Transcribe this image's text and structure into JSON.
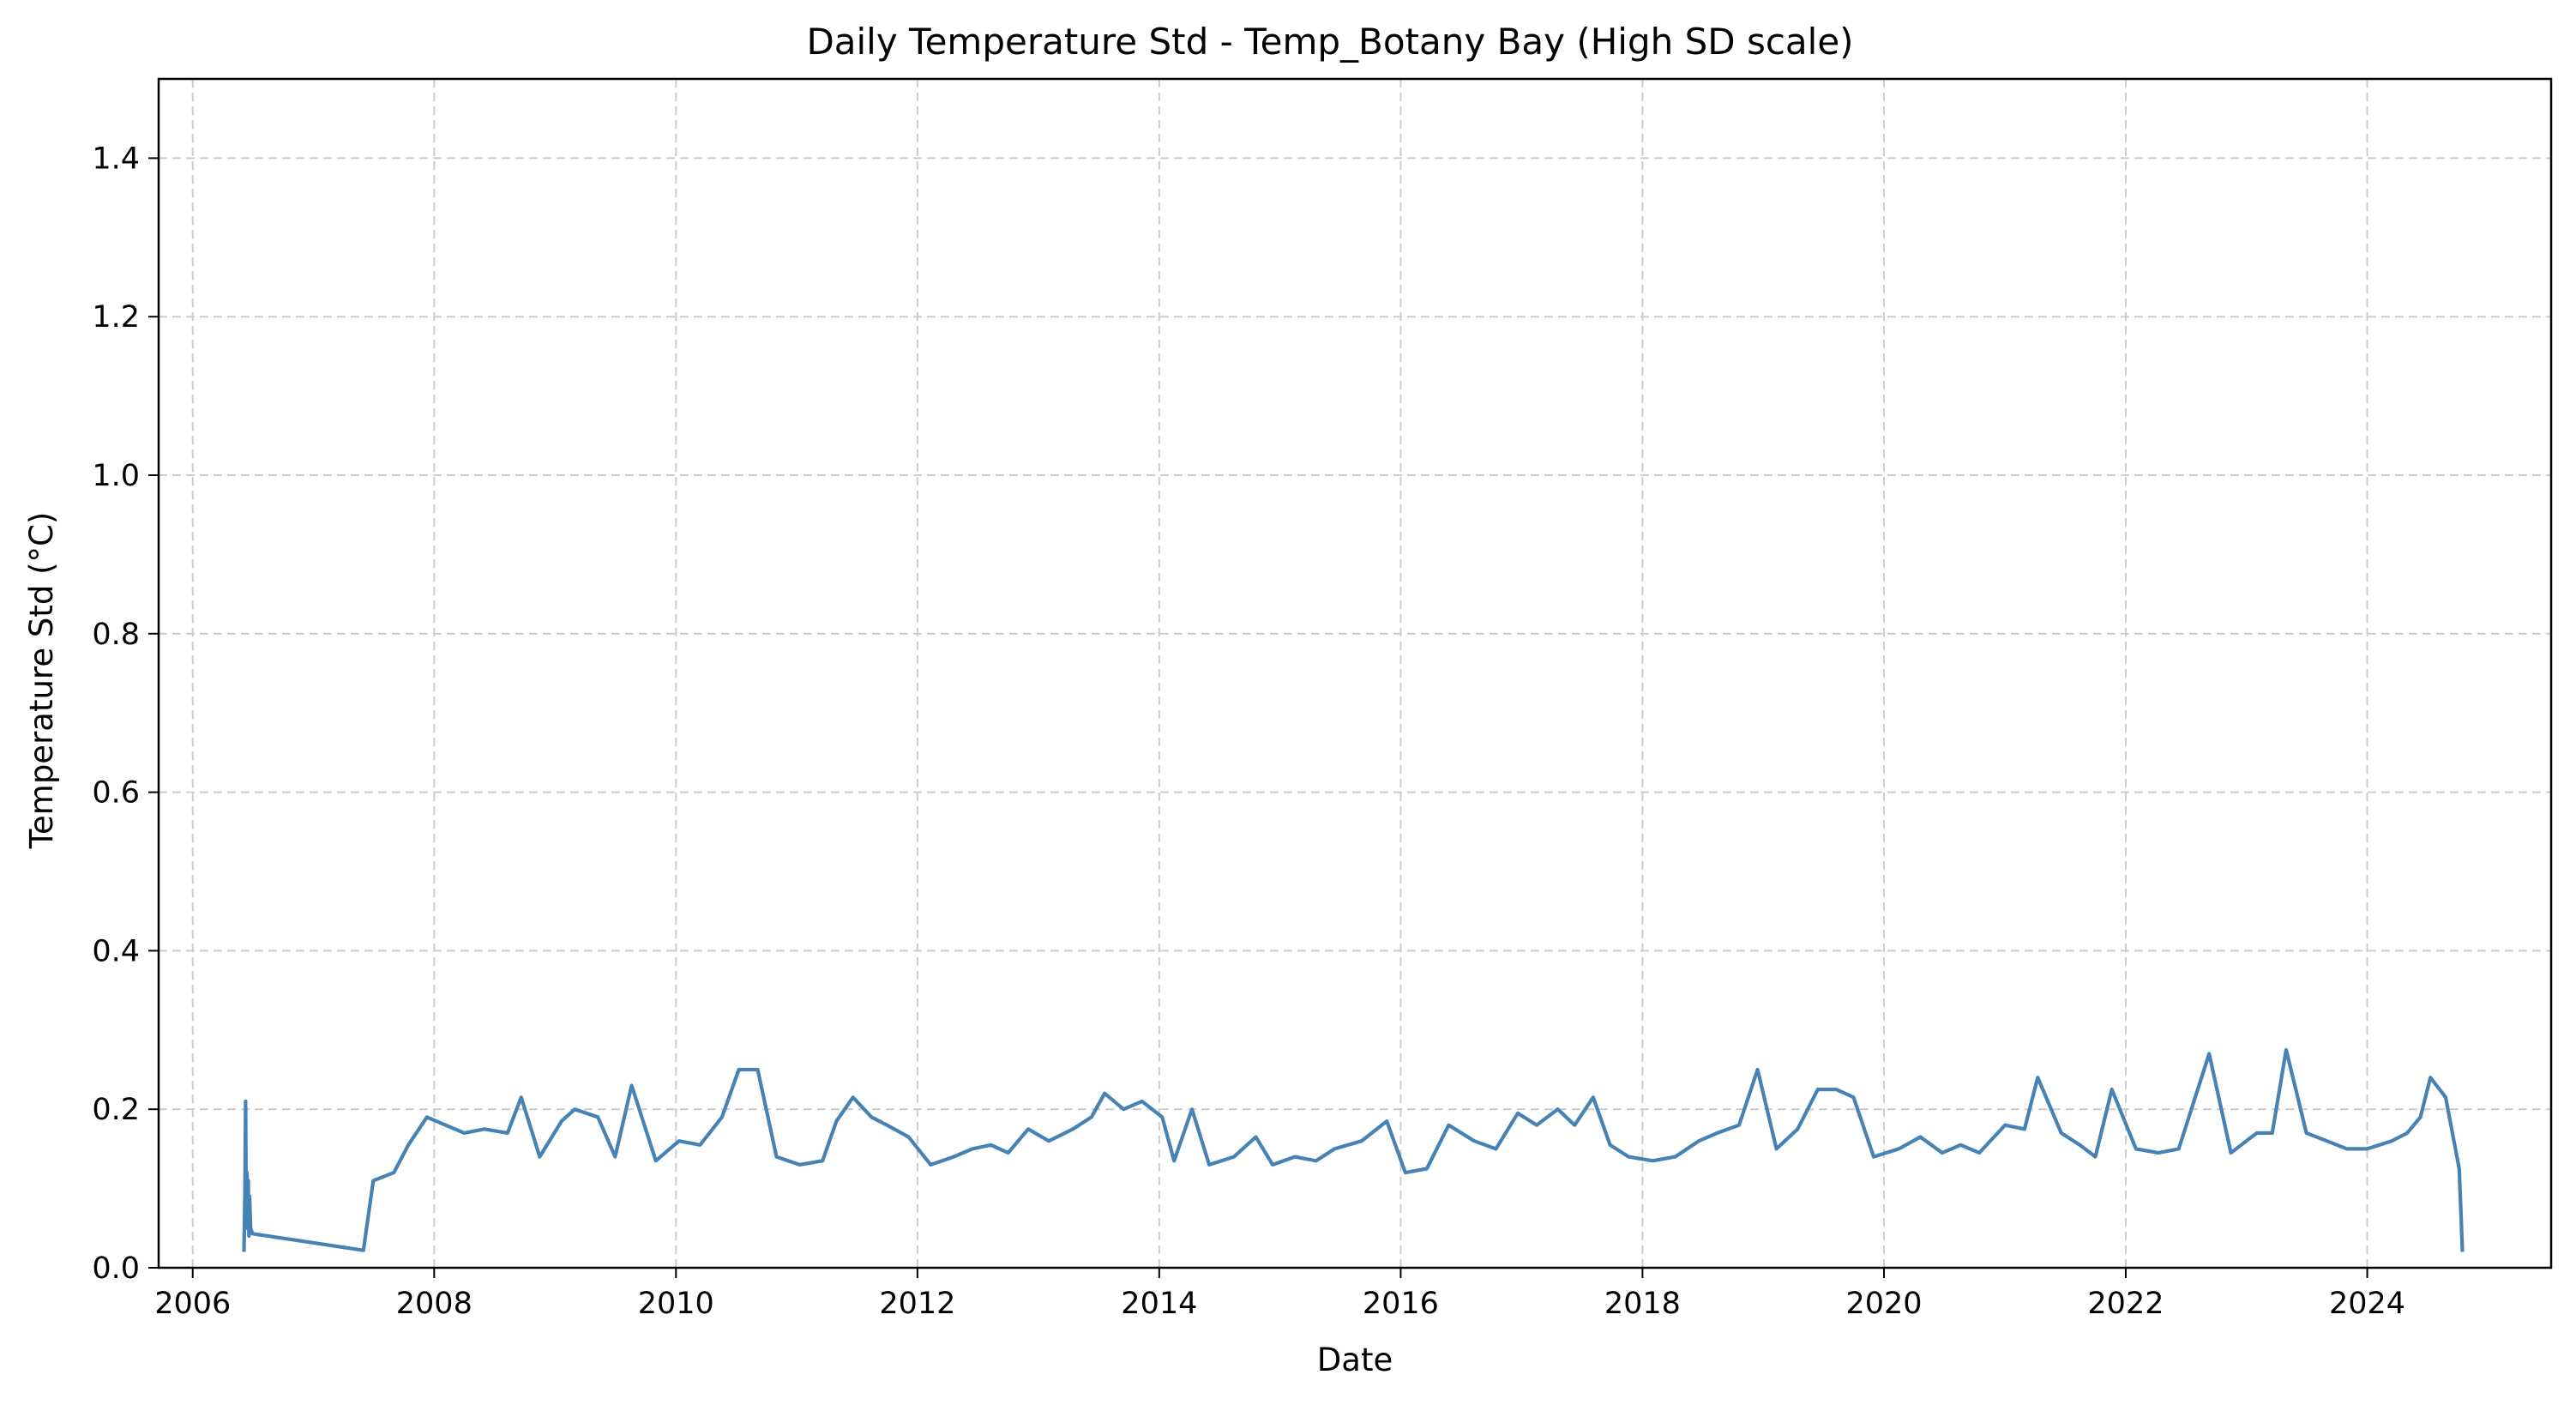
{
  "chart_data": {
    "type": "line",
    "title": "Daily Temperature Std - Temp_Botany Bay (High SD scale)",
    "xlabel": "Date",
    "ylabel": "Temperature Std (°C)",
    "xlim": [
      "2005-09-20",
      "2025-07-10"
    ],
    "ylim": [
      0.0,
      1.5
    ],
    "x_ticks": [
      "2006",
      "2008",
      "2010",
      "2012",
      "2014",
      "2016",
      "2018",
      "2020",
      "2022",
      "2024"
    ],
    "y_ticks": [
      "0.0",
      "0.2",
      "0.4",
      "0.6",
      "0.8",
      "1.0",
      "1.2",
      "1.4"
    ],
    "grid": true,
    "grid_style": "dashed",
    "legend": "none",
    "series": [
      {
        "color": "#4682b4",
        "points": [
          [
            "2006-06-05",
            0.02
          ],
          [
            "2006-06-08",
            0.1
          ],
          [
            "2006-06-10",
            0.21
          ],
          [
            "2006-06-12",
            0.05
          ],
          [
            "2006-06-14",
            0.12
          ],
          [
            "2006-06-16",
            0.06
          ],
          [
            "2006-06-18",
            0.11
          ],
          [
            "2006-06-20",
            0.04
          ],
          [
            "2006-06-22",
            0.09
          ],
          [
            "2006-06-25",
            0.05
          ],
          [
            "2006-07-01",
            0.043
          ],
          [
            "2007-06-01",
            0.022
          ],
          [
            "2007-07-01",
            0.11
          ],
          [
            "2007-09-01",
            0.12
          ],
          [
            "2007-10-15",
            0.155
          ],
          [
            "2007-12-10",
            0.19
          ],
          [
            "2008-04-01",
            0.17
          ],
          [
            "2008-06-01",
            0.175
          ],
          [
            "2008-08-10",
            0.17
          ],
          [
            "2008-09-20",
            0.215
          ],
          [
            "2008-11-15",
            0.14
          ],
          [
            "2009-01-20",
            0.185
          ],
          [
            "2009-03-01",
            0.2
          ],
          [
            "2009-05-10",
            0.19
          ],
          [
            "2009-07-01",
            0.14
          ],
          [
            "2009-08-20",
            0.23
          ],
          [
            "2009-11-01",
            0.135
          ],
          [
            "2010-01-10",
            0.16
          ],
          [
            "2010-03-15",
            0.155
          ],
          [
            "2010-05-20",
            0.19
          ],
          [
            "2010-07-10",
            0.25
          ],
          [
            "2010-09-05",
            0.25
          ],
          [
            "2010-11-01",
            0.14
          ],
          [
            "2011-01-10",
            0.13
          ],
          [
            "2011-03-20",
            0.135
          ],
          [
            "2011-05-01",
            0.185
          ],
          [
            "2011-06-20",
            0.215
          ],
          [
            "2011-08-15",
            0.19
          ],
          [
            "2011-10-01",
            0.18
          ],
          [
            "2011-12-05",
            0.165
          ],
          [
            "2012-02-10",
            0.13
          ],
          [
            "2012-04-20",
            0.14
          ],
          [
            "2012-06-15",
            0.15
          ],
          [
            "2012-08-10",
            0.155
          ],
          [
            "2012-10-01",
            0.145
          ],
          [
            "2012-12-01",
            0.175
          ],
          [
            "2013-02-01",
            0.16
          ],
          [
            "2013-04-15",
            0.175
          ],
          [
            "2013-06-10",
            0.19
          ],
          [
            "2013-07-20",
            0.22
          ],
          [
            "2013-09-15",
            0.2
          ],
          [
            "2013-11-10",
            0.21
          ],
          [
            "2014-01-10",
            0.19
          ],
          [
            "2014-02-15",
            0.135
          ],
          [
            "2014-04-10",
            0.2
          ],
          [
            "2014-06-01",
            0.13
          ],
          [
            "2014-08-15",
            0.14
          ],
          [
            "2014-10-20",
            0.165
          ],
          [
            "2014-12-10",
            0.13
          ],
          [
            "2015-02-15",
            0.14
          ],
          [
            "2015-04-20",
            0.135
          ],
          [
            "2015-06-15",
            0.15
          ],
          [
            "2015-09-05",
            0.16
          ],
          [
            "2015-11-20",
            0.185
          ],
          [
            "2016-01-15",
            0.12
          ],
          [
            "2016-03-20",
            0.125
          ],
          [
            "2016-05-25",
            0.18
          ],
          [
            "2016-08-10",
            0.16
          ],
          [
            "2016-10-15",
            0.15
          ],
          [
            "2016-12-20",
            0.195
          ],
          [
            "2017-02-15",
            0.18
          ],
          [
            "2017-04-20",
            0.2
          ],
          [
            "2017-06-10",
            0.18
          ],
          [
            "2017-08-05",
            0.215
          ],
          [
            "2017-09-25",
            0.155
          ],
          [
            "2017-11-20",
            0.14
          ],
          [
            "2018-02-01",
            0.135
          ],
          [
            "2018-04-10",
            0.14
          ],
          [
            "2018-06-20",
            0.16
          ],
          [
            "2018-08-15",
            0.17
          ],
          [
            "2018-10-20",
            0.18
          ],
          [
            "2018-12-15",
            0.25
          ],
          [
            "2019-02-10",
            0.15
          ],
          [
            "2019-04-15",
            0.175
          ],
          [
            "2019-06-15",
            0.225
          ],
          [
            "2019-08-10",
            0.225
          ],
          [
            "2019-10-01",
            0.215
          ],
          [
            "2019-12-01",
            0.14
          ],
          [
            "2020-02-15",
            0.15
          ],
          [
            "2020-04-20",
            0.165
          ],
          [
            "2020-06-25",
            0.145
          ],
          [
            "2020-08-20",
            0.155
          ],
          [
            "2020-10-15",
            0.145
          ],
          [
            "2021-01-01",
            0.18
          ],
          [
            "2021-03-01",
            0.175
          ],
          [
            "2021-04-10",
            0.24
          ],
          [
            "2021-06-20",
            0.17
          ],
          [
            "2021-08-15",
            0.155
          ],
          [
            "2021-10-01",
            0.14
          ],
          [
            "2021-11-20",
            0.225
          ],
          [
            "2022-02-01",
            0.15
          ],
          [
            "2022-04-10",
            0.145
          ],
          [
            "2022-06-10",
            0.15
          ],
          [
            "2022-09-10",
            0.27
          ],
          [
            "2022-11-15",
            0.145
          ],
          [
            "2023-02-01",
            0.17
          ],
          [
            "2023-03-20",
            0.17
          ],
          [
            "2023-05-01",
            0.275
          ],
          [
            "2023-07-01",
            0.17
          ],
          [
            "2023-09-01",
            0.16
          ],
          [
            "2023-11-01",
            0.15
          ],
          [
            "2024-01-01",
            0.15
          ],
          [
            "2024-03-15",
            0.16
          ],
          [
            "2024-05-01",
            0.17
          ],
          [
            "2024-06-10",
            0.19
          ],
          [
            "2024-07-10",
            0.24
          ],
          [
            "2024-08-25",
            0.215
          ],
          [
            "2024-10-05",
            0.125
          ],
          [
            "2024-10-15",
            0.02
          ]
        ]
      }
    ]
  }
}
